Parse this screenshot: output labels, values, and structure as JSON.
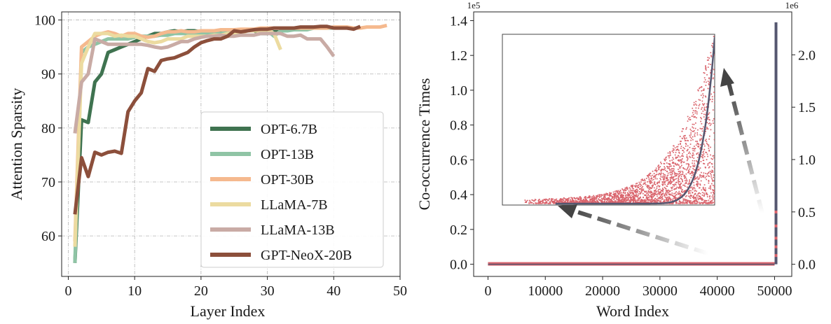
{
  "chart_data": [
    {
      "type": "line",
      "xlabel": "Layer Index",
      "ylabel": "Attention Sparsity",
      "xlim": [
        -1,
        50
      ],
      "ylim": [
        52.5,
        101.5
      ],
      "xticks": [
        0,
        10,
        20,
        30,
        40,
        50
      ],
      "yticks": [
        60,
        70,
        80,
        90,
        100
      ],
      "grid": true,
      "legend_position": "lower-right",
      "series": [
        {
          "name": "OPT-6.7B",
          "color": "#3f7350",
          "x": [
            1,
            2,
            3,
            4,
            5,
            6,
            7,
            8,
            9,
            10,
            11,
            12,
            13,
            14,
            15,
            16,
            17,
            18,
            19,
            20,
            21,
            22,
            23,
            24,
            25,
            26,
            27,
            28,
            29,
            30,
            31,
            32
          ],
          "y": [
            55,
            81.5,
            81,
            88.5,
            90,
            94,
            94.5,
            95,
            95.5,
            96,
            96.5,
            97,
            97.5,
            97.5,
            97.8,
            98,
            97.8,
            98,
            98,
            97.8,
            97.8,
            98,
            98,
            98,
            98.2,
            98,
            98,
            98,
            97.5,
            97.5,
            97.8,
            97.8
          ]
        },
        {
          "name": "OPT-13B",
          "color": "#8fc4a5",
          "x": [
            1,
            2,
            3,
            4,
            5,
            6,
            7,
            8,
            9,
            10,
            11,
            12,
            13,
            14,
            15,
            16,
            17,
            18,
            19,
            20,
            21,
            22,
            23,
            24,
            25,
            26,
            27,
            28,
            29,
            30,
            31,
            32,
            33,
            34,
            35,
            36,
            37,
            38,
            39,
            40
          ],
          "y": [
            55,
            94,
            95,
            95.5,
            96,
            96.5,
            96.5,
            96.5,
            96.5,
            96.8,
            97,
            97,
            97,
            97.2,
            97.2,
            97.5,
            97.5,
            97.5,
            97.5,
            97.5,
            97.5,
            97.5,
            97.5,
            97.8,
            97.8,
            98,
            98,
            98,
            98,
            98,
            97,
            98,
            98,
            98.2,
            98.2,
            98.2,
            98.5,
            98.5,
            98.5,
            98.5
          ]
        },
        {
          "name": "OPT-30B",
          "color": "#f5b98e",
          "x": [
            1,
            2,
            3,
            4,
            5,
            6,
            7,
            8,
            9,
            10,
            11,
            12,
            13,
            14,
            15,
            16,
            17,
            18,
            19,
            20,
            21,
            22,
            23,
            24,
            25,
            26,
            27,
            28,
            29,
            30,
            31,
            32,
            33,
            34,
            35,
            36,
            37,
            38,
            39,
            40,
            41,
            42,
            43,
            44,
            45,
            46,
            47,
            48
          ],
          "y": [
            59,
            95,
            96,
            97,
            97.5,
            97.8,
            97.5,
            97,
            97.5,
            97.5,
            97,
            96.8,
            97,
            97.5,
            97.8,
            97.8,
            98,
            97.8,
            97.8,
            98,
            98,
            98,
            98.2,
            98.2,
            98.2,
            98.3,
            98.3,
            98.3,
            98.5,
            98.5,
            98.5,
            98.5,
            98.5,
            98.5,
            98.5,
            98.5,
            98.5,
            98.5,
            98.5,
            98.7,
            98.7,
            98.7,
            98.5,
            98.5,
            98.7,
            98.7,
            98.7,
            99
          ]
        },
        {
          "name": "LLaMA-7B",
          "color": "#ecdba0",
          "x": [
            1,
            2,
            3,
            4,
            5,
            6,
            7,
            8,
            9,
            10,
            11,
            12,
            13,
            14,
            15,
            16,
            17,
            18,
            19,
            20,
            21,
            22,
            23,
            24,
            25,
            26,
            27,
            28,
            29,
            30,
            31,
            32
          ],
          "y": [
            58,
            92,
            95,
            97.5,
            97.5,
            97.5,
            97,
            97.2,
            97,
            97,
            96.5,
            96,
            95.8,
            96,
            96.5,
            96.5,
            96.5,
            97,
            97,
            97,
            97,
            97.2,
            97.2,
            97.5,
            97.5,
            97.5,
            98,
            98,
            98,
            98.2,
            97.5,
            94.5
          ]
        },
        {
          "name": "LLaMA-13B",
          "color": "#c9aba5",
          "x": [
            1,
            2,
            3,
            4,
            5,
            6,
            7,
            8,
            9,
            10,
            11,
            12,
            13,
            14,
            15,
            16,
            17,
            18,
            19,
            20,
            21,
            22,
            23,
            24,
            25,
            26,
            27,
            28,
            29,
            30,
            31,
            32,
            33,
            34,
            35,
            36,
            37,
            38,
            39,
            40
          ],
          "y": [
            79,
            88.5,
            90,
            96.5,
            96,
            95.5,
            95.5,
            95.5,
            95.5,
            95.5,
            95.5,
            95.3,
            95,
            94.8,
            95,
            95.5,
            96,
            96,
            96.5,
            96.8,
            97,
            97,
            97.2,
            97,
            97,
            97.2,
            97.2,
            97.2,
            97.5,
            97.5,
            97.5,
            97.5,
            97,
            97,
            97.2,
            96.5,
            96.5,
            96.5,
            95,
            93.3
          ]
        },
        {
          "name": "GPT-NeoX-20B",
          "color": "#8c4f3b",
          "x": [
            1,
            2,
            3,
            4,
            5,
            6,
            7,
            8,
            9,
            10,
            11,
            12,
            13,
            14,
            15,
            16,
            17,
            18,
            19,
            20,
            21,
            22,
            23,
            24,
            25,
            26,
            27,
            28,
            29,
            30,
            31,
            32,
            33,
            34,
            35,
            36,
            37,
            38,
            39,
            40,
            41,
            42,
            43,
            44
          ],
          "y": [
            64,
            74.5,
            71,
            75.5,
            75,
            75.5,
            75.7,
            75.3,
            83,
            85,
            86.5,
            91,
            90.5,
            92.5,
            92.8,
            93,
            93.5,
            94,
            95,
            95.8,
            96.2,
            96.5,
            96.5,
            97,
            98,
            97.8,
            98,
            98.2,
            98.3,
            98.3,
            98.5,
            98.5,
            98.5,
            98.5,
            98.7,
            98.7,
            98.7,
            98.8,
            98.8,
            98.5,
            98.5,
            98.5,
            98.3,
            98.8
          ]
        }
      ]
    },
    {
      "type": "scatter",
      "xlabel": "Word Index",
      "ylabel": "Co-occurrence Times",
      "xlim": [
        -2500,
        53000
      ],
      "ylim": [
        -0.07,
        1.45
      ],
      "xticks": [
        0,
        10000,
        20000,
        30000,
        40000,
        50000
      ],
      "yticks_left": [
        0.0,
        0.2,
        0.4,
        0.6,
        0.8,
        1.0,
        1.2,
        1.4
      ],
      "left_scale_label": "1e5",
      "yticks_right": [
        0.0,
        0.5,
        1.0,
        1.5,
        2.0
      ],
      "right_scale_label": "1e6",
      "right_ylim": [
        -0.116,
        2.41
      ],
      "scatter_color": "#d9636b",
      "curve_color": "#555770",
      "note": "main panel shows dense points near zero from 0 to ~50000 with a tall spike at ~50200; inset zooms into the tail showing exponentially increasing co-occurrence"
    }
  ],
  "left": {
    "xlabel": "Layer Index",
    "ylabel": "Attention Sparsity",
    "xtick_labels": [
      "0",
      "10",
      "20",
      "30",
      "40",
      "50"
    ],
    "ytick_labels": [
      "60",
      "70",
      "80",
      "90",
      "100"
    ],
    "legend": [
      "OPT-6.7B",
      "OPT-13B",
      "OPT-30B",
      "LLaMA-7B",
      "LLaMA-13B",
      "GPT-NeoX-20B"
    ]
  },
  "right": {
    "xlabel": "Word Index",
    "ylabel": "Co-occurrence Times",
    "left_scale": "1e5",
    "right_scale": "1e6",
    "xtick_labels": [
      "0",
      "10000",
      "20000",
      "30000",
      "40000",
      "50000"
    ],
    "ytick_left_labels": [
      "0.0",
      "0.2",
      "0.4",
      "0.6",
      "0.8",
      "1.0",
      "1.2",
      "1.4"
    ],
    "ytick_right_labels": [
      "0.0",
      "0.5",
      "1.0",
      "1.5",
      "2.0"
    ]
  }
}
